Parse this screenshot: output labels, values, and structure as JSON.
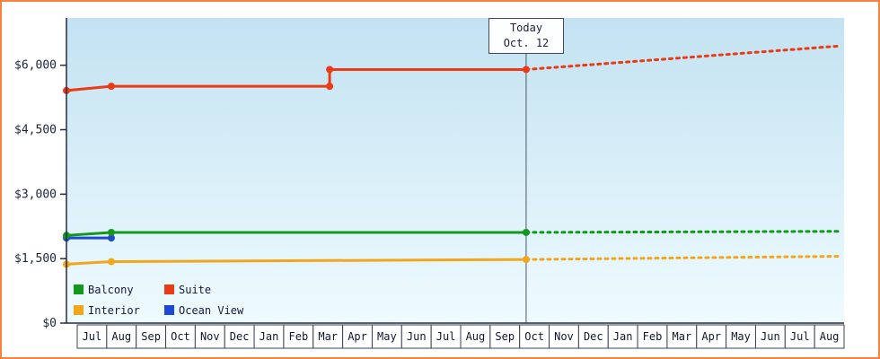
{
  "chart_data": {
    "type": "line",
    "title": "",
    "y_axis": {
      "max": 7100,
      "ticks": [
        {
          "value": 0,
          "label": "$0"
        },
        {
          "value": 1500,
          "label": "$1,500"
        },
        {
          "value": 3000,
          "label": "$3,000"
        },
        {
          "value": 4500,
          "label": "$4,500"
        },
        {
          "value": 6000,
          "label": "$6,000"
        }
      ]
    },
    "x_axis": {
      "months": [
        "Jul",
        "Aug",
        "Sep",
        "Oct",
        "Nov",
        "Dec",
        "Jan",
        "Feb",
        "Mar",
        "Apr",
        "May",
        "Jun",
        "Jul",
        "Aug",
        "Sep",
        "Oct",
        "Nov",
        "Dec",
        "Jan",
        "Feb",
        "Mar",
        "Apr",
        "May",
        "Jun",
        "Jul",
        "Aug"
      ]
    },
    "today": {
      "line1": "Today",
      "line2": "Oct. 12",
      "month_position": 15.37
    },
    "series": [
      {
        "name": "Ocean View",
        "color": "#1e49d2",
        "solid": [
          [
            0,
            1980
          ],
          [
            1.5,
            1980
          ]
        ],
        "dashed": [],
        "markers": [
          [
            0,
            1980
          ],
          [
            1.5,
            1980
          ]
        ]
      },
      {
        "name": "Interior",
        "color": "#f2a61a",
        "solid": [
          [
            0,
            1370
          ],
          [
            1.5,
            1430
          ],
          [
            15.37,
            1480
          ]
        ],
        "dashed": [
          [
            15.37,
            1480
          ],
          [
            25.9,
            1555
          ]
        ],
        "markers": [
          [
            0,
            1370
          ],
          [
            1.5,
            1430
          ],
          [
            15.37,
            1480
          ]
        ]
      },
      {
        "name": "Balcony",
        "color": "#12991c",
        "solid": [
          [
            0,
            2040
          ],
          [
            1.5,
            2110
          ],
          [
            15.37,
            2110
          ]
        ],
        "dashed": [
          [
            15.37,
            2110
          ],
          [
            25.9,
            2135
          ]
        ],
        "markers": [
          [
            0,
            2040
          ],
          [
            1.5,
            2110
          ],
          [
            15.37,
            2110
          ]
        ]
      },
      {
        "name": "Suite",
        "color": "#ea3b16",
        "solid": [
          [
            0,
            5410
          ],
          [
            1.5,
            5510
          ],
          [
            8.8,
            5510
          ],
          [
            8.8,
            5900
          ],
          [
            15.37,
            5900
          ]
        ],
        "dashed": [
          [
            15.37,
            5900
          ],
          [
            25.9,
            6450
          ]
        ],
        "markers": [
          [
            0,
            5410
          ],
          [
            1.5,
            5510
          ],
          [
            8.8,
            5510
          ],
          [
            8.8,
            5900
          ],
          [
            15.37,
            5900
          ]
        ]
      }
    ],
    "legend": {
      "rows": [
        [
          {
            "label": "Balcony",
            "color": "#12991c"
          },
          {
            "label": "Suite",
            "color": "#ea3b16"
          }
        ],
        [
          {
            "label": "Interior",
            "color": "#f2a61a"
          },
          {
            "label": "Ocean View",
            "color": "#1e49d2"
          }
        ]
      ]
    },
    "plot": {
      "background_top": "#c3e2f1",
      "background_bottom": "#eefbff",
      "axis_color": "#232b45",
      "today_line_color": "#4d5668",
      "frame_border_color": "#f6833f"
    }
  }
}
